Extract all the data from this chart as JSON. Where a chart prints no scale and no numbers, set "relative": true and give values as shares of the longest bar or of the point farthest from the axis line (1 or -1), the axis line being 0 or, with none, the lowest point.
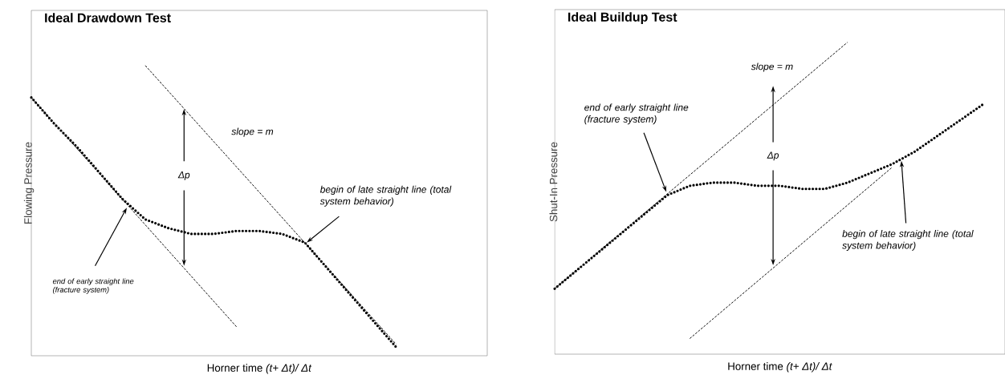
{
  "chart_data": [
    {
      "type": "line",
      "title": "Ideal Drawdown Test",
      "xlabel": "Horner time *(t+ Δt)/ Δt*",
      "ylabel": "Flowing Pressure",
      "relative": true,
      "categories": [
        null,
        null,
        null,
        null,
        null,
        null,
        null,
        null,
        null,
        null,
        null,
        null,
        null,
        null,
        null,
        null,
        null,
        null,
        null,
        null,
        null
      ],
      "series": [
        {
          "color": "#000000",
          "line_style": "dotted",
          "values": [
            0.89,
            0.8,
            0.72,
            0.63,
            0.54,
            0.47,
            0.44,
            0.42,
            0.42,
            0.43,
            0.43,
            0.42,
            0.39,
            0.3,
            0.21,
            0.12,
            0.03,
            null,
            null,
            null,
            null
          ]
        },
        {
          "color": "#000000",
          "line_style": "dashed",
          "values": [
            0.89,
            null,
            null,
            null,
            null,
            null,
            null,
            null,
            null,
            0.1,
            null,
            null,
            null,
            null,
            null,
            null,
            null,
            null,
            null,
            null,
            null
          ]
        },
        {
          "color": "#000000",
          "line_style": "dashed",
          "values": [
            null,
            null,
            null,
            null,
            null,
            1,
            null,
            null,
            null,
            null,
            null,
            null,
            null,
            null,
            null,
            null,
            0.04,
            null,
            null,
            null,
            null
          ]
        }
      ],
      "annotations": [
        "slope = m",
        "Δp",
        "begin of late straight line (total system behavior)",
        "end of early straight line (fracture system)"
      ]
    },
    {
      "type": "line",
      "title": "Ideal Buildup Test",
      "xlabel": "Horner time *(t+ Δt)/ Δt*",
      "ylabel": "Shut-In Pressure",
      "relative": true,
      "categories": [
        null,
        null,
        null,
        null,
        null,
        null,
        null,
        null,
        null,
        null,
        null,
        null,
        null,
        null,
        null,
        null,
        null,
        null,
        null,
        null,
        null
      ],
      "series": [
        {
          "color": "#000000",
          "line_style": "dotted",
          "values": [
            0.21,
            0.27,
            0.33,
            0.39,
            0.45,
            0.51,
            0.54,
            0.55,
            0.55,
            0.54,
            0.54,
            0.53,
            0.53,
            0.55,
            0.58,
            0.61,
            0.65,
            0.7,
            0.75,
            0.8,
            null
          ]
        },
        {
          "color": "#000000",
          "line_style": "dashed",
          "values": [
            0.21,
            null,
            null,
            null,
            null,
            null,
            null,
            null,
            null,
            null,
            null,
            null,
            null,
            1,
            null,
            null,
            null,
            null,
            null,
            null,
            null
          ]
        },
        {
          "color": "#000000",
          "line_style": "dashed",
          "values": [
            null,
            null,
            null,
            null,
            null,
            null,
            0.05,
            null,
            null,
            null,
            null,
            null,
            null,
            null,
            null,
            0.6,
            null,
            null,
            null,
            null,
            null
          ]
        }
      ],
      "annotations": [
        "slope = m",
        "Δp",
        "begin of late straight line (total system behavior)",
        "end of early straight line (fracture system)"
      ]
    }
  ]
}
